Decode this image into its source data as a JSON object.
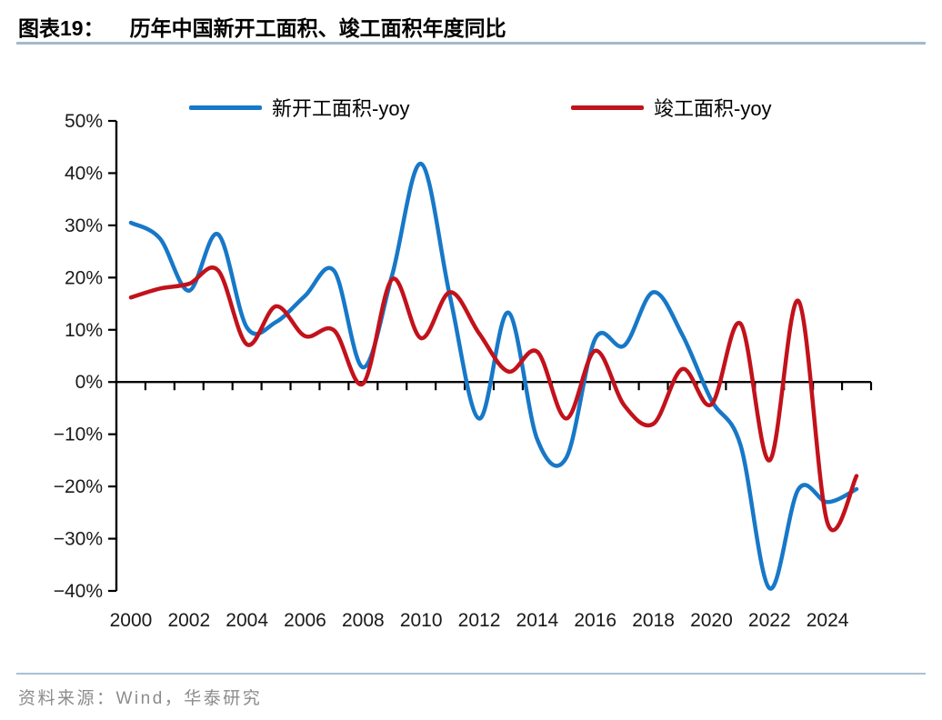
{
  "header": {
    "title_prefix": "图表19：",
    "title": "历年中国新开工面积、竣工面积年度同比"
  },
  "footer": {
    "source": "资料来源：Wind，华泰研究"
  },
  "chart_data": {
    "type": "line",
    "title": "历年中国新开工面积、竣工面积年度同比",
    "x": [
      2000,
      2001,
      2002,
      2003,
      2004,
      2005,
      2006,
      2007,
      2008,
      2009,
      2010,
      2011,
      2012,
      2013,
      2014,
      2015,
      2016,
      2017,
      2018,
      2019,
      2020,
      2021,
      2022,
      2023,
      2024,
      2025
    ],
    "series": [
      {
        "name": "新开工面积-yoy",
        "color": "#1778c8",
        "values": [
          30.5,
          27.5,
          17.5,
          28.3,
          10.4,
          11.5,
          16.5,
          21.3,
          2.8,
          20.5,
          41.8,
          16.2,
          -7.0,
          13.3,
          -11.0,
          -14.5,
          8.3,
          7.0,
          17.2,
          9.0,
          -3.5,
          -12.0,
          -39.5,
          -20.5,
          -23.0,
          -20.5
        ]
      },
      {
        "name": "竣工面积-yoy",
        "color": "#c2121b",
        "values": [
          16.2,
          17.9,
          18.8,
          21.4,
          7.2,
          14.5,
          8.8,
          9.9,
          -0.3,
          19.7,
          8.4,
          17.2,
          9.3,
          2.0,
          5.8,
          -7.0,
          6.0,
          -4.5,
          -8.0,
          2.5,
          -4.3,
          11.2,
          -15.0,
          15.5,
          -27.0,
          -18.0
        ]
      }
    ],
    "ylim": [
      -40,
      50
    ],
    "y_tick_step": 10,
    "y_tick_labels": [
      "50%",
      "40%",
      "30%",
      "20%",
      "10%",
      "0%",
      "−10%",
      "−20%",
      "−30%",
      "−40%"
    ],
    "x_tick_labels": [
      "2000",
      "2002",
      "2004",
      "2006",
      "2008",
      "2010",
      "2012",
      "2014",
      "2016",
      "2018",
      "2020",
      "2022",
      "2024"
    ],
    "grid": false,
    "legend_position": "top",
    "axis_color": "#000000",
    "label_color": "#1a1a1a"
  }
}
